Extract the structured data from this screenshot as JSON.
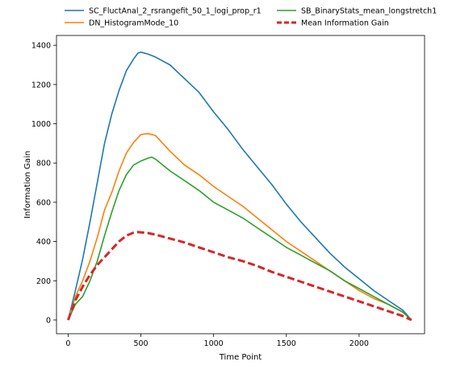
{
  "chart_data": {
    "type": "line",
    "xlabel": "Time Point",
    "ylabel": "Information Gain",
    "xlim": [
      -80,
      2450
    ],
    "ylim": [
      -70,
      1450
    ],
    "xticks": [
      0,
      500,
      1000,
      1500,
      2000
    ],
    "yticks": [
      0,
      200,
      400,
      600,
      800,
      1000,
      1200,
      1400
    ],
    "grid": false,
    "legend_position": "top, above plot, two columns",
    "series": [
      {
        "name": "SC_FluctAnal_2_rsrangefit_50_1_logi_prop_r1",
        "color": "#1f77b4",
        "style": "solid",
        "x": [
          0,
          50,
          100,
          150,
          200,
          250,
          300,
          350,
          400,
          450,
          480,
          500,
          550,
          600,
          700,
          800,
          900,
          1000,
          1100,
          1200,
          1300,
          1400,
          1500,
          1600,
          1700,
          1800,
          1900,
          2000,
          2100,
          2200,
          2300,
          2360
        ],
        "y": [
          0,
          150,
          310,
          500,
          700,
          900,
          1050,
          1170,
          1270,
          1330,
          1360,
          1365,
          1355,
          1340,
          1300,
          1230,
          1160,
          1060,
          970,
          870,
          780,
          690,
          590,
          500,
          420,
          340,
          270,
          210,
          150,
          100,
          50,
          0
        ]
      },
      {
        "name": "DN_HistogramMode_10",
        "color": "#ff7f0e",
        "style": "solid",
        "x": [
          0,
          50,
          100,
          150,
          200,
          250,
          300,
          350,
          400,
          450,
          500,
          550,
          600,
          700,
          800,
          900,
          1000,
          1100,
          1200,
          1300,
          1400,
          1500,
          1600,
          1700,
          1800,
          1900,
          2000,
          2100,
          2200,
          2300,
          2360
        ],
        "y": [
          0,
          120,
          200,
          300,
          420,
          560,
          650,
          760,
          850,
          905,
          945,
          950,
          940,
          860,
          790,
          740,
          680,
          630,
          580,
          520,
          460,
          400,
          350,
          300,
          250,
          200,
          150,
          110,
          80,
          40,
          0
        ]
      },
      {
        "name": "SB_BinaryStats_mean_longstretch1",
        "color": "#2ca02c",
        "style": "solid",
        "x": [
          0,
          50,
          100,
          150,
          200,
          250,
          300,
          350,
          400,
          450,
          500,
          550,
          575,
          600,
          700,
          800,
          900,
          1000,
          1100,
          1200,
          1300,
          1400,
          1500,
          1600,
          1700,
          1800,
          1900,
          2000,
          2100,
          2200,
          2300,
          2360
        ],
        "y": [
          0,
          80,
          120,
          200,
          300,
          430,
          550,
          660,
          740,
          790,
          810,
          825,
          830,
          820,
          760,
          710,
          660,
          600,
          560,
          520,
          470,
          420,
          370,
          330,
          290,
          250,
          200,
          160,
          120,
          80,
          40,
          0
        ]
      },
      {
        "name": "Mean Information Gain",
        "color": "#d62728",
        "style": "dashed",
        "x": [
          0,
          50,
          100,
          150,
          200,
          250,
          300,
          350,
          400,
          450,
          480,
          500,
          550,
          600,
          700,
          800,
          900,
          1000,
          1100,
          1200,
          1300,
          1400,
          1500,
          1600,
          1700,
          1800,
          1900,
          2000,
          2100,
          2200,
          2300,
          2360
        ],
        "y": [
          0,
          100,
          170,
          230,
          280,
          320,
          360,
          400,
          430,
          445,
          448,
          447,
          443,
          435,
          415,
          395,
          370,
          345,
          320,
          300,
          275,
          245,
          220,
          195,
          170,
          145,
          120,
          95,
          70,
          45,
          20,
          0
        ]
      }
    ]
  }
}
